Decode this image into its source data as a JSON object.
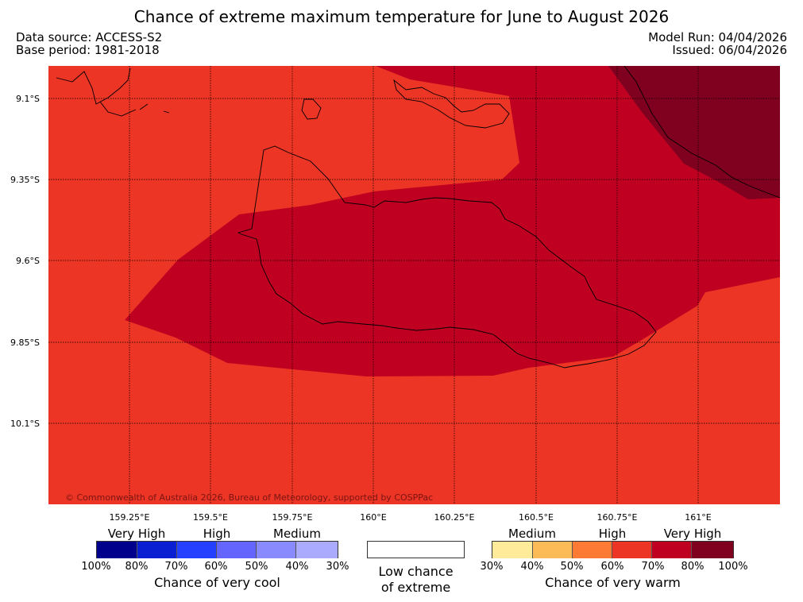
{
  "title": "Chance of extreme maximum temperature for June to August 2026",
  "meta": {
    "data_source": "Data source: ACCESS-S2",
    "base_period": "Base period: 1981-2018",
    "model_run": "Model Run: 04/04/2026",
    "issued": "Issued: 06/04/2026"
  },
  "map": {
    "latitude_labels": [
      "9.1°S",
      "9.35°S",
      "9.6°S",
      "9.85°S",
      "10.1°S"
    ],
    "longitude_labels": [
      "159.25°E",
      "159.5°E",
      "159.75°E",
      "160°E",
      "160.25°E",
      "160.5°E",
      "160.75°E",
      "161°E"
    ],
    "copyright": "© Commonwealth of Australia 2026, Bureau of Meteorology, supported by COSPPac",
    "colors": {
      "high": "#ec3524",
      "very_high": "#c00021",
      "very_high_top": "#800020"
    }
  },
  "legend": {
    "cool": {
      "categories": [
        "Very High",
        "High",
        "Medium"
      ],
      "percents": [
        "100%",
        "80%",
        "70%",
        "60%",
        "50%",
        "40%",
        "30%"
      ],
      "colors": [
        "#00008c",
        "#0a1ed2",
        "#2640ff",
        "#6464ff",
        "#8a8aff",
        "#aaaaff"
      ],
      "label": "Chance of very cool"
    },
    "neutral": {
      "label_line1": "Low chance",
      "label_line2": "of extreme"
    },
    "warm": {
      "categories": [
        "Medium",
        "High",
        "Very High"
      ],
      "percents": [
        "30%",
        "40%",
        "50%",
        "60%",
        "70%",
        "80%",
        "100%"
      ],
      "colors": [
        "#ffeb99",
        "#fdbb57",
        "#fd7a35",
        "#ec3524",
        "#c00021",
        "#800020"
      ],
      "label": "Chance of very warm"
    }
  }
}
